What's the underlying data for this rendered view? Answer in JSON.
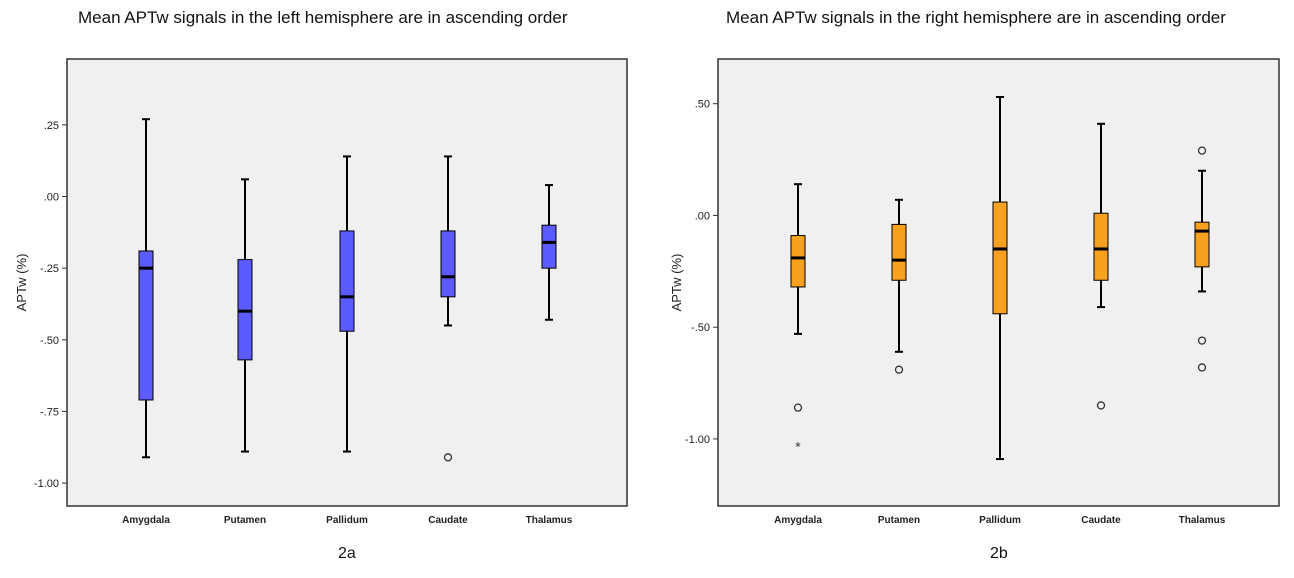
{
  "chart_data": [
    {
      "type": "boxplot",
      "title": "Mean APTw signals in the left hemisphere are in ascending order",
      "caption": "2a",
      "ylabel": "APTw (%)",
      "xlabel": "",
      "ylim": [
        -1.08,
        0.48
      ],
      "yticks": [
        0.25,
        0.0,
        -0.25,
        -0.5,
        -0.75,
        -1.0
      ],
      "ytick_labels": [
        ".25",
        ".00",
        "-.25",
        "-.50",
        "-.75",
        "-1.00"
      ],
      "fill_color": "#5b5bff",
      "categories": [
        "Amygdala",
        "Putamen",
        "Pallidum",
        "Caudate",
        "Thalamus"
      ],
      "boxes": [
        {
          "whisker_low": -0.91,
          "q1": -0.71,
          "median": -0.25,
          "q3": -0.19,
          "whisker_high": 0.27,
          "outliers": [],
          "extremes": []
        },
        {
          "whisker_low": -0.89,
          "q1": -0.57,
          "median": -0.4,
          "q3": -0.22,
          "whisker_high": 0.06,
          "outliers": [],
          "extremes": []
        },
        {
          "whisker_low": -0.89,
          "q1": -0.47,
          "median": -0.35,
          "q3": -0.12,
          "whisker_high": 0.14,
          "outliers": [],
          "extremes": []
        },
        {
          "whisker_low": -0.45,
          "q1": -0.35,
          "median": -0.28,
          "q3": -0.12,
          "whisker_high": 0.14,
          "outliers": [
            -0.91
          ],
          "extremes": []
        },
        {
          "whisker_low": -0.43,
          "q1": -0.25,
          "median": -0.16,
          "q3": -0.1,
          "whisker_high": 0.04,
          "outliers": [],
          "extremes": []
        }
      ]
    },
    {
      "type": "boxplot",
      "title": "Mean APTw signals in the right hemisphere are in ascending order",
      "caption": "2b",
      "ylabel": "APTw (%)",
      "xlabel": "",
      "ylim": [
        -1.3,
        0.7
      ],
      "yticks": [
        0.5,
        0.0,
        -0.5,
        -1.0
      ],
      "ytick_labels": [
        ".50",
        ".00",
        "-.50",
        "-1.00"
      ],
      "fill_color": "#f7a11f",
      "categories": [
        "Amygdala",
        "Putamen",
        "Pallidum",
        "Caudate",
        "Thalamus"
      ],
      "boxes": [
        {
          "whisker_low": -0.53,
          "q1": -0.32,
          "median": -0.19,
          "q3": -0.09,
          "whisker_high": 0.14,
          "outliers": [
            -0.86
          ],
          "extremes": [
            -1.03
          ]
        },
        {
          "whisker_low": -0.61,
          "q1": -0.29,
          "median": -0.2,
          "q3": -0.04,
          "whisker_high": 0.07,
          "outliers": [
            -0.69
          ],
          "extremes": []
        },
        {
          "whisker_low": -1.09,
          "q1": -0.44,
          "median": -0.15,
          "q3": 0.06,
          "whisker_high": 0.53,
          "outliers": [],
          "extremes": []
        },
        {
          "whisker_low": -0.41,
          "q1": -0.29,
          "median": -0.15,
          "q3": 0.01,
          "whisker_high": 0.41,
          "outliers": [
            -0.85
          ],
          "extremes": []
        },
        {
          "whisker_low": -0.34,
          "q1": -0.23,
          "median": -0.07,
          "q3": -0.03,
          "whisker_high": 0.2,
          "outliers": [
            0.29,
            -0.56,
            -0.68
          ],
          "extremes": []
        }
      ]
    }
  ]
}
